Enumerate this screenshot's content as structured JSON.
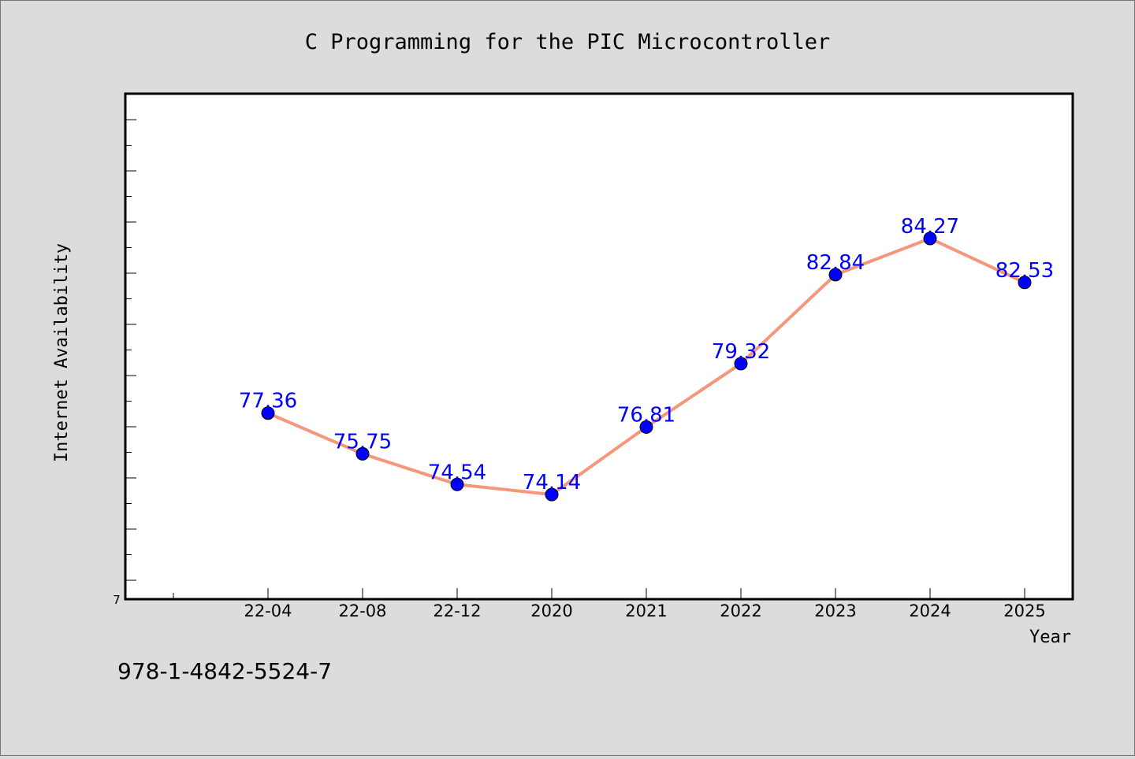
{
  "colors": {
    "background": "#dcdcdc",
    "plot_background": "#ffffff",
    "line": "#f4977a",
    "marker": "#0000ff",
    "data_label": "#0000ff",
    "text": "#000000"
  },
  "footer_text": "978-1-4842-5524-7",
  "chart_data": {
    "type": "line",
    "title": "C Programming for the PIC Microcontroller",
    "xlabel": "Year",
    "ylabel": "Internet Availability",
    "categories": [
      "22-04",
      "22-08",
      "22-12",
      "2020",
      "2021",
      "2022",
      "2023",
      "2024",
      "2025"
    ],
    "series": [
      {
        "values": [
          77.36,
          75.75,
          74.54,
          74.14,
          76.81,
          79.32,
          82.84,
          84.27,
          82.53
        ],
        "labels": [
          "77.36",
          "75.75",
          "74.54",
          "74.14",
          "76.81",
          "79.32",
          "82.84",
          "84.27",
          "82.53"
        ]
      }
    ],
    "y_tick_labels": [
      "7"
    ],
    "ylim": [
      70,
      90
    ],
    "grid": false,
    "legend": "none"
  }
}
